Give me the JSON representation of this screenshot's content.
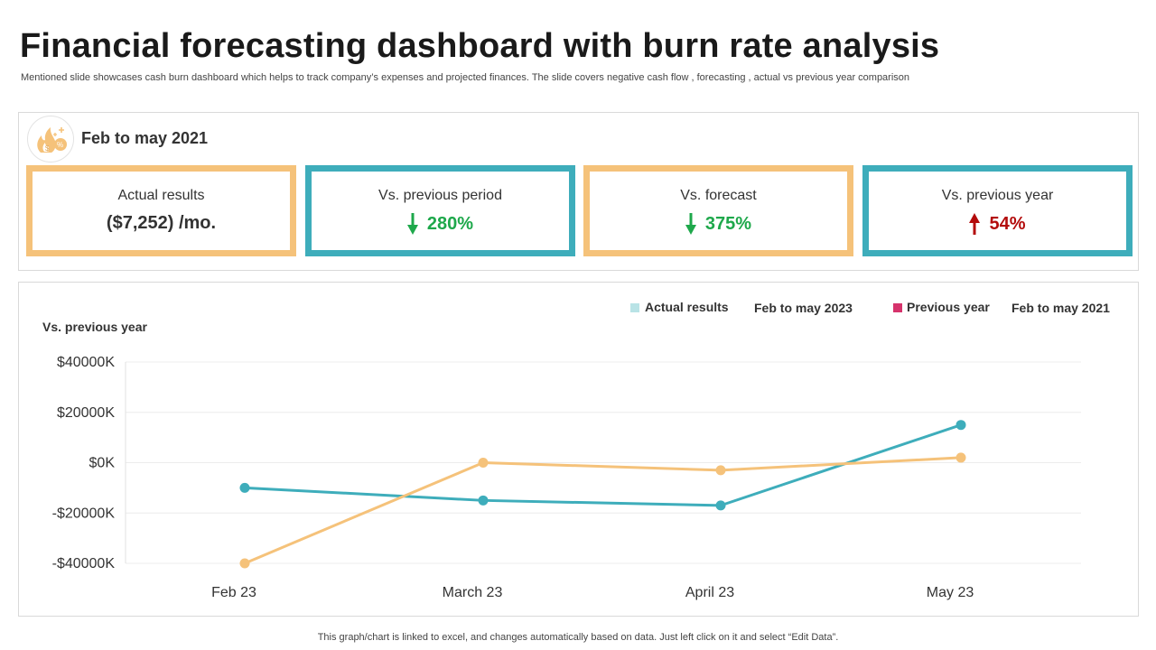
{
  "header": {
    "title": "Financial forecasting dashboard with burn rate analysis",
    "subtitle": "Mentioned slide showcases cash burn dashboard which helps to track company’s expenses and projected finances. The slide covers negative cash flow , forecasting , actual vs previous year comparison"
  },
  "kpi": {
    "period": "Feb to may 2021",
    "icon": "burn-rate-icon",
    "cards": [
      {
        "label": "Actual results",
        "value": "($7,252) /mo.",
        "trend": "none",
        "color": "#f5c27a"
      },
      {
        "label": "Vs. previous period",
        "value": "280%",
        "trend": "down",
        "color": "#3eadbb"
      },
      {
        "label": "Vs. forecast",
        "value": "375%",
        "trend": "down",
        "color": "#f5c27a"
      },
      {
        "label": "Vs. previous year",
        "value": "54%",
        "trend": "up",
        "color": "#3eadbb"
      }
    ]
  },
  "chart_data": {
    "type": "line",
    "title": "Vs. previous year",
    "categories": [
      "Feb 23",
      "March 23",
      "April 23",
      "May 23"
    ],
    "y_ticks": [
      "$40000K",
      "$20000K",
      "$0K",
      "-$20000K",
      "-$40000K"
    ],
    "ylim": [
      -40000,
      40000
    ],
    "legend": [
      {
        "marker_color": "#b9e3e6",
        "label": "Actual results",
        "period": "Feb to may 2023"
      },
      {
        "marker_color": "#d6336c",
        "label": "Previous year",
        "period": "Feb to may 2021"
      }
    ],
    "series": [
      {
        "name": "Actual results",
        "color": "#3eadbb",
        "values": [
          -10000,
          -15000,
          -17000,
          15000
        ]
      },
      {
        "name": "Previous year",
        "color": "#f5c27a",
        "values": [
          -40000,
          0,
          -3000,
          2000
        ]
      }
    ],
    "gridlines": true
  },
  "footer": {
    "note": "This graph/chart is linked to excel,  and changes automatically based on data. Just left click on it and select “Edit Data”."
  }
}
